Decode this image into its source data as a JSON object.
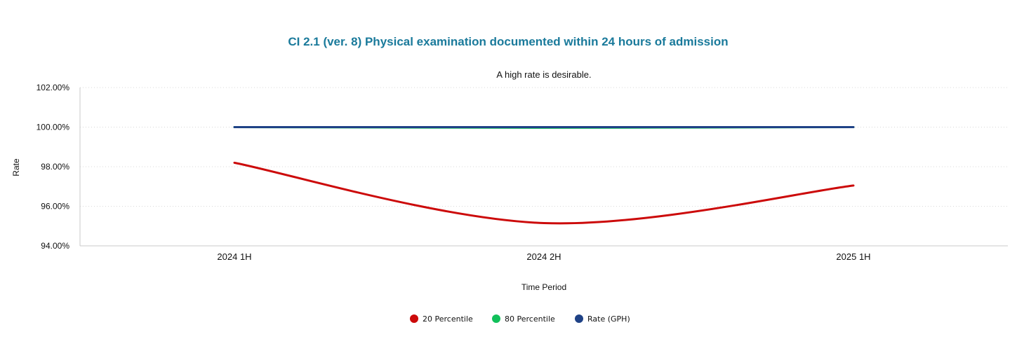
{
  "chart_data": {
    "type": "line",
    "title": "CI 2.1 (ver. 8) Physical examination documented within 24 hours of admission",
    "subtitle": "A high rate is desirable.",
    "xlabel": "Time Period",
    "ylabel": "Rate",
    "categories": [
      "2024 1H",
      "2024 2H",
      "2025 1H"
    ],
    "ylim": [
      94,
      102
    ],
    "yticks": [
      94,
      96,
      98,
      100,
      102
    ],
    "y_tick_labels": [
      "94.00%",
      "96.00%",
      "98.00%",
      "100.00%",
      "102.00%"
    ],
    "grid": true,
    "smooth": true,
    "legend_position": "bottom",
    "series": [
      {
        "name": "20 Percentile",
        "values": [
          98.2,
          95.15,
          97.05
        ],
        "color": "#cc0a0a"
      },
      {
        "name": "80 Percentile",
        "values": [
          100.0,
          99.97,
          100.0
        ],
        "color": "#11c05a"
      },
      {
        "name": "Rate (GPH)",
        "values": [
          100.0,
          100.0,
          100.0
        ],
        "color": "#1f4286"
      }
    ],
    "colors": {
      "title": "#1a7a9b",
      "grid": "#d8d8d8",
      "axis": "#c8c8c8"
    }
  }
}
